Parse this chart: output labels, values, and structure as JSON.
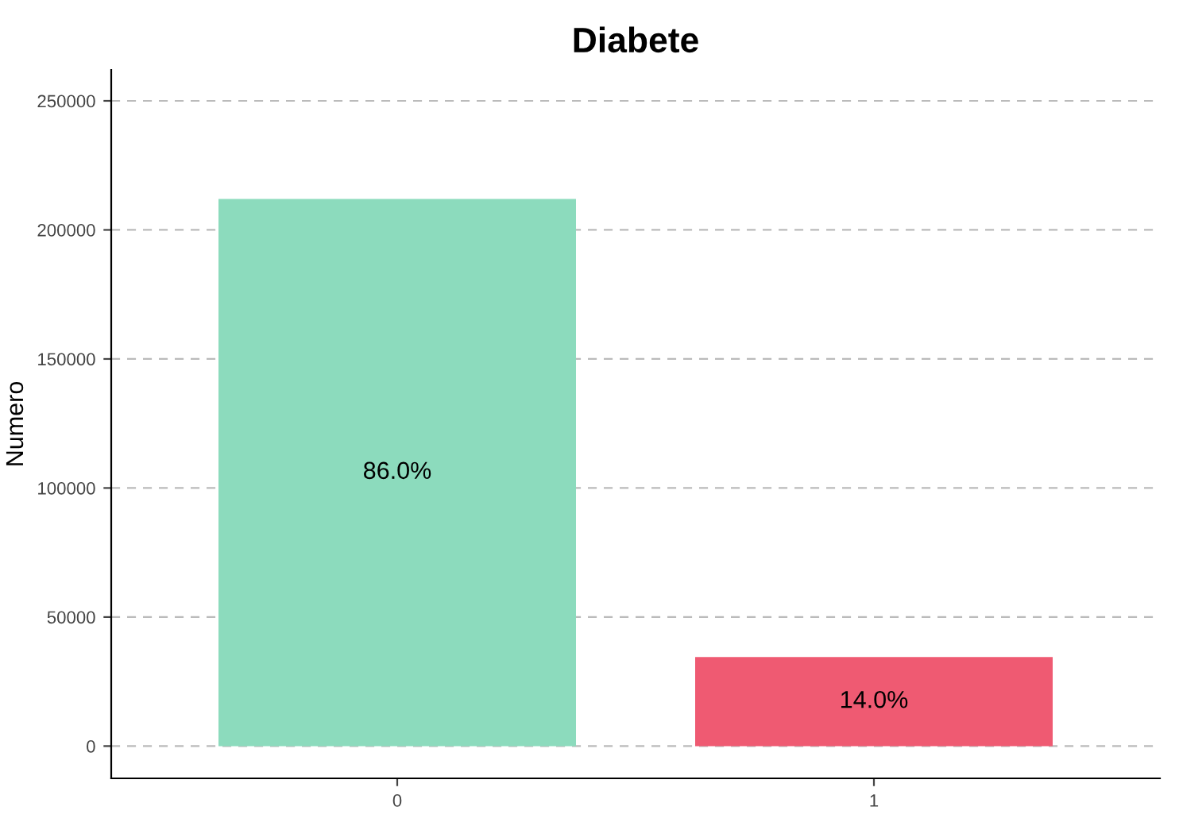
{
  "chart_data": {
    "type": "bar",
    "title": "Diabete",
    "ylabel": "Numero",
    "categories": [
      "0",
      "1"
    ],
    "values": [
      212000,
      34500
    ],
    "colors": [
      "#8cdbbd",
      "#ef5a72"
    ],
    "annotations": [
      "86.0%",
      "14.0%"
    ],
    "ylim": [
      -12500,
      262000
    ],
    "yticks": [
      0,
      50000,
      100000,
      150000,
      200000,
      250000
    ],
    "grid": "y"
  }
}
